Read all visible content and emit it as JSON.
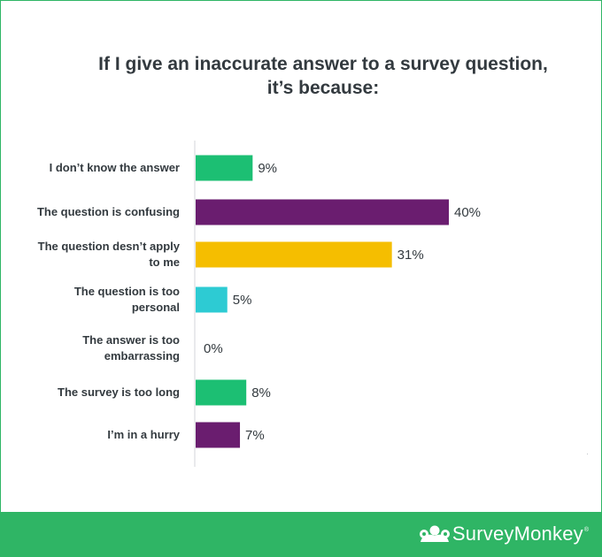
{
  "chart_data": {
    "type": "bar",
    "orientation": "horizontal",
    "title_lines": [
      "If I give an inaccurate answer to a survey question,",
      "it’s because:"
    ],
    "categories": [
      {
        "lines": [
          "I don’t know the answer"
        ]
      },
      {
        "lines": [
          "The question is confusing"
        ]
      },
      {
        "lines": [
          "The question desn’t apply",
          "to me"
        ]
      },
      {
        "lines": [
          "The question is too",
          "personal"
        ]
      },
      {
        "lines": [
          "The answer is too",
          "embarrassing"
        ]
      },
      {
        "lines": [
          "The survey is too long"
        ]
      },
      {
        "lines": [
          "I’m in a hurry"
        ]
      }
    ],
    "values": [
      9,
      40,
      31,
      5,
      0,
      8,
      7
    ],
    "value_labels": [
      "9%",
      "40%",
      "31%",
      "5%",
      "0%",
      "8%",
      "7%"
    ],
    "colors": [
      "#1cbf73",
      "#6a1d6f",
      "#f5be00",
      "#2dcbd3",
      "#1cbf73",
      "#1cbf73",
      "#6a1d6f"
    ],
    "unit": "%",
    "xlim": [
      0,
      40
    ],
    "grid": false,
    "legend": "none"
  },
  "brand": {
    "name": "SurveyMonkey",
    "registered": "®",
    "logo_icon": "surveymonkey-logo-icon",
    "footer_color": "#2fb565"
  }
}
